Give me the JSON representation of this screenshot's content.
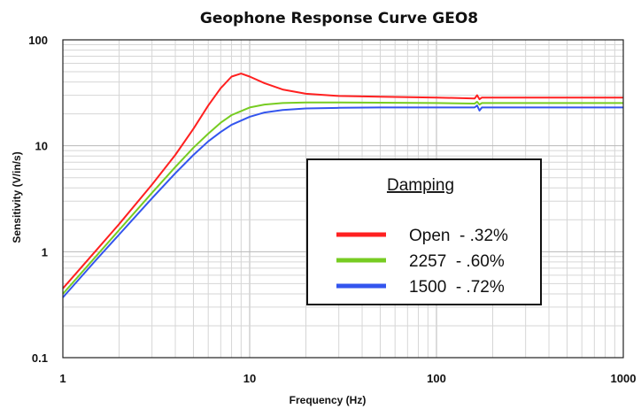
{
  "chart_data": {
    "type": "line",
    "title": "Geophone Response Curve GEO8",
    "xlabel": "Frequency (Hz)",
    "ylabel": "Sensitivity (V/in/s)",
    "xscale": "log",
    "yscale": "log",
    "xlim": [
      1,
      1000
    ],
    "ylim": [
      0.1,
      100
    ],
    "x_ticks": [
      "1",
      "10",
      "100",
      "1000"
    ],
    "y_ticks": [
      "0.1",
      "1",
      "10",
      "100"
    ],
    "grid": true,
    "legend_title": "Damping",
    "legend_position": "center-right",
    "series": [
      {
        "name": "Open  - .32%",
        "color": "#ff2020",
        "x": [
          1,
          1.5,
          2,
          3,
          4,
          5,
          6,
          7,
          8,
          9,
          10,
          12,
          15,
          20,
          30,
          50,
          100,
          160,
          165,
          170,
          175,
          200,
          500,
          1000
        ],
        "y": [
          0.45,
          1.02,
          1.82,
          4.3,
          8.2,
          14.5,
          24,
          35,
          45,
          48,
          45,
          39,
          34,
          31,
          29.5,
          29,
          28.5,
          28,
          30,
          27.5,
          28.5,
          28.5,
          28.5,
          28.5
        ]
      },
      {
        "name": "2257  - .60%",
        "color": "#77cc22",
        "x": [
          1,
          1.5,
          2,
          3,
          4,
          5,
          6,
          7,
          8,
          10,
          12,
          15,
          20,
          30,
          50,
          100,
          160,
          165,
          170,
          175,
          200,
          500,
          1000
        ],
        "y": [
          0.4,
          0.9,
          1.6,
          3.6,
          6.3,
          9.6,
          13,
          16.5,
          19.5,
          23,
          24.5,
          25.3,
          25.6,
          25.6,
          25.5,
          25.3,
          25,
          26,
          24.5,
          25.3,
          25.3,
          25.3,
          25.3
        ]
      },
      {
        "name": "1500  - .72%",
        "color": "#3355ee",
        "x": [
          1,
          1.5,
          2,
          3,
          4,
          5,
          6,
          7,
          8,
          10,
          12,
          15,
          20,
          30,
          50,
          100,
          160,
          165,
          170,
          175,
          200,
          500,
          1000
        ],
        "y": [
          0.37,
          0.83,
          1.45,
          3.2,
          5.5,
          8.2,
          11,
          13.5,
          15.8,
          18.8,
          20.6,
          21.8,
          22.5,
          22.8,
          23,
          23,
          23,
          24,
          21.5,
          23,
          23,
          23,
          23
        ]
      }
    ]
  }
}
